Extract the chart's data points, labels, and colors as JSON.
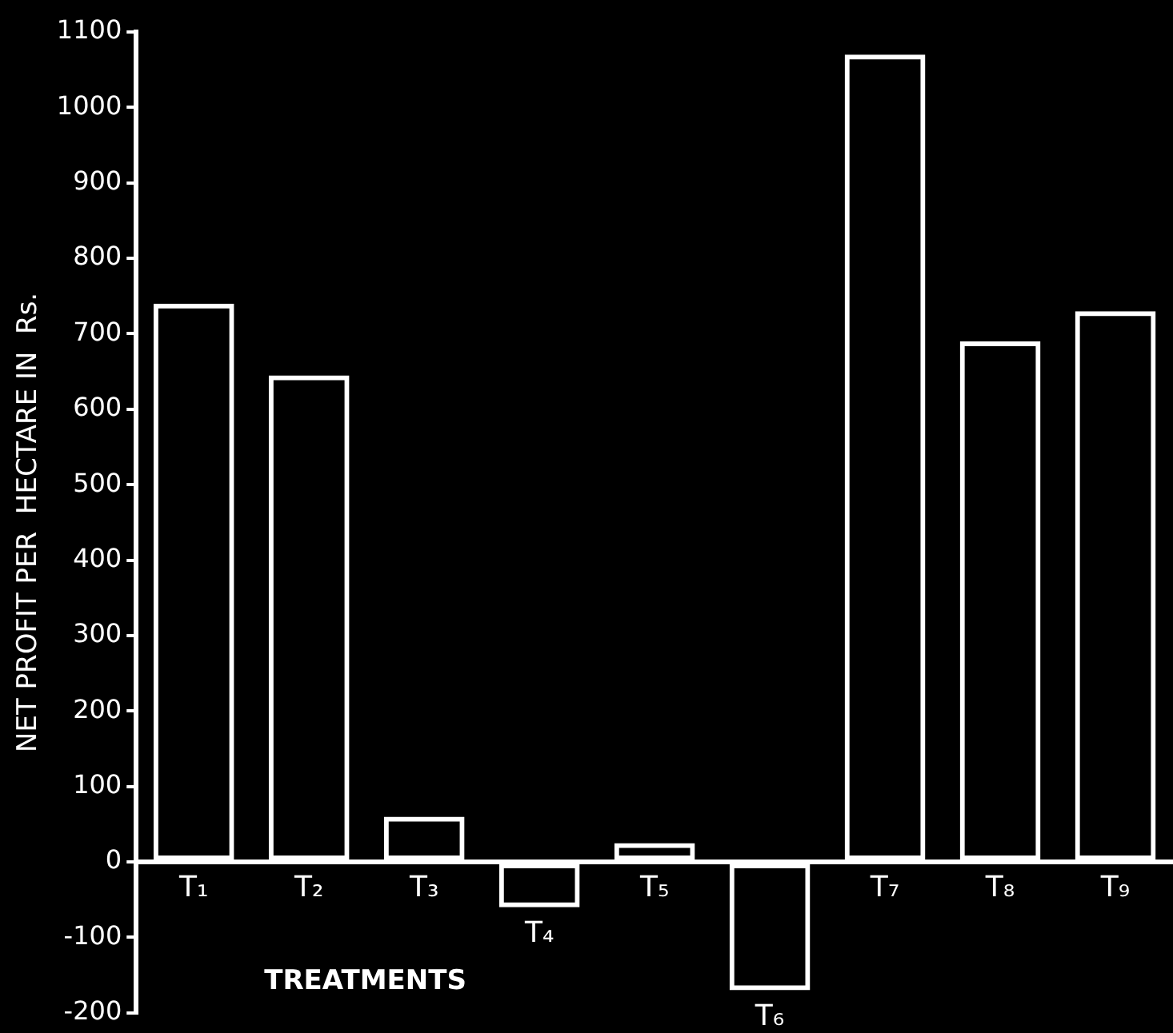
{
  "chart_data": {
    "type": "bar",
    "xlabel": "TREATMENTS",
    "ylabel": "NET PROFIT PER  HECTARE IN  Rs.",
    "categories": [
      "T₁",
      "T₂",
      "T₃",
      "T₄",
      "T₅",
      "T₆",
      "T₇",
      "T₈",
      "T₉"
    ],
    "values": [
      740,
      645,
      60,
      -60,
      25,
      -170,
      1070,
      690,
      730
    ],
    "color": "#ffffff",
    "ylim": [
      -200,
      1100
    ],
    "yticks": [
      -200,
      -100,
      0,
      100,
      200,
      300,
      400,
      500,
      600,
      700,
      800,
      900,
      1000,
      1100
    ],
    "grid": false,
    "legend": false
  }
}
